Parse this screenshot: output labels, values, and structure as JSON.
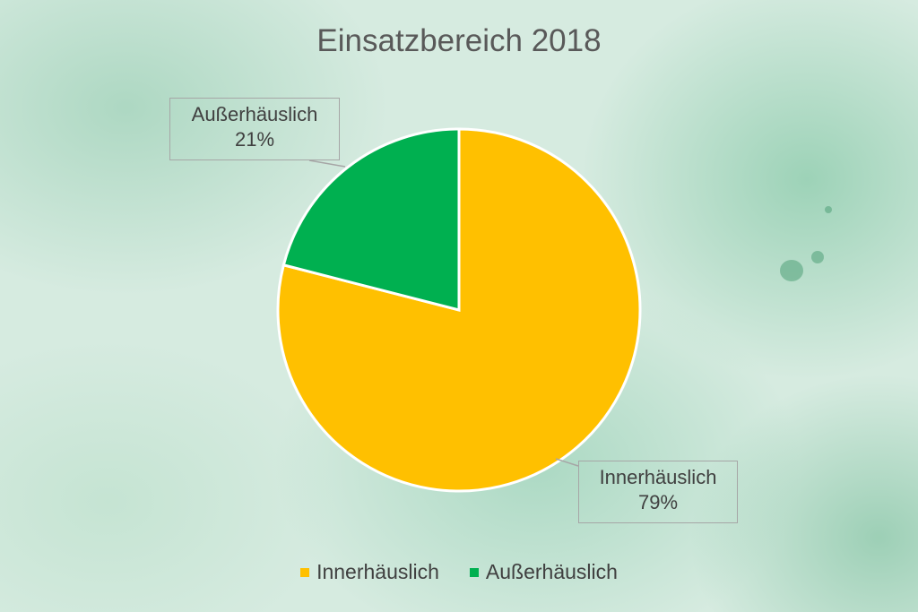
{
  "chart_data": {
    "type": "pie",
    "title": "Einsatzbereich 2018",
    "slices": [
      {
        "label": "Innerhäuslich",
        "value": 79,
        "value_label": "79%",
        "color": "#ffc000"
      },
      {
        "label": "Außerhäuslich",
        "value": 21,
        "value_label": "21%",
        "color": "#00b050"
      }
    ],
    "legend_position": "bottom"
  }
}
